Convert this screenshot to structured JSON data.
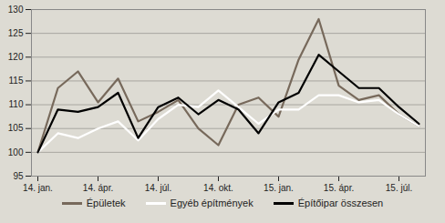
{
  "chart_data": {
    "type": "line",
    "categories": [
      "14. jan.",
      null,
      null,
      "14. ápr.",
      null,
      null,
      "14. júl.",
      null,
      null,
      "14. okt.",
      null,
      null,
      "15. jan.",
      null,
      null,
      "15. ápr.",
      null,
      null,
      "15. júl.",
      null
    ],
    "series": [
      {
        "name": "Épületek",
        "color": "#77695b",
        "values": [
          100,
          113.5,
          117,
          110.5,
          115.5,
          106.5,
          108.5,
          111,
          105,
          101.5,
          110,
          111.5,
          107.5,
          119.5,
          128,
          114,
          111,
          112,
          108,
          105.5
        ]
      },
      {
        "name": "Egyéb építmények",
        "color": "#ffffff",
        "values": [
          100,
          104,
          103,
          105,
          106.5,
          102.5,
          107,
          110,
          109.5,
          113,
          109.5,
          106,
          109,
          109,
          112,
          112,
          110.5,
          111,
          108,
          105.5
        ]
      },
      {
        "name": "Építőipar összesen",
        "color": "#000000",
        "values": [
          100,
          109,
          108.5,
          109.5,
          112.5,
          103,
          109.5,
          111.5,
          108,
          111,
          109,
          104,
          110.5,
          112.5,
          120.5,
          117,
          113.5,
          113.5,
          109.5,
          106
        ]
      }
    ],
    "ylim": [
      95,
      130
    ],
    "yticks": [
      95,
      100,
      105,
      110,
      115,
      120,
      125,
      130
    ],
    "grid": true,
    "legend": "bottom"
  }
}
